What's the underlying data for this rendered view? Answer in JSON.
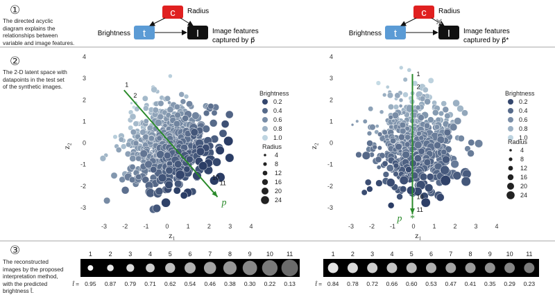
{
  "panels": [
    {
      "number": "①",
      "description": [
        "The directed acyclic",
        "diagram explains the",
        "relationships between",
        "variable and image features."
      ]
    },
    {
      "number": "②",
      "description": [
        "The 2-D latent space with",
        "datapoints in the test set",
        "of the synthetic images."
      ]
    },
    {
      "number": "③",
      "description": [
        "The reconstructed",
        "images by the proposed",
        "interpretation method,",
        "with the predicted",
        "brightness  t̂."
      ]
    }
  ],
  "dag": {
    "left": {
      "c": "c",
      "t": "t",
      "I": "I",
      "radius": "Radius",
      "brightness": "Brightness",
      "features_line1": "Image features",
      "features_line2": "captured by p⃗"
    },
    "right": {
      "c": "c",
      "t": "t",
      "I": "I",
      "radius": "Radius",
      "brightness": "Brightness",
      "features_line1": "Image features",
      "features_line2": "captured by p⃗*",
      "blocked_mark": "✕"
    },
    "colors": {
      "c_node": "#e02020",
      "t_node": "#5b9bd5",
      "I_node": "#111111"
    }
  },
  "chart_data": [
    {
      "type": "scatter",
      "xlabel": "z₁",
      "ylabel": "z₂",
      "xlim": [
        -3.4,
        4.4
      ],
      "ylim": [
        -3.5,
        4.4
      ],
      "xticks": [
        "-3",
        "-2",
        "-1",
        "0",
        "1",
        "2",
        "3",
        "4"
      ],
      "yticks": [
        "-3",
        "-2",
        "-1",
        "0",
        "1",
        "2",
        "3",
        "4"
      ],
      "color_legend_title": "Brightness",
      "color_legend": [
        "0.2",
        "0.4",
        "0.6",
        "0.8",
        "1.0"
      ],
      "size_legend_title": "Radius",
      "size_legend": [
        "4",
        "8",
        "12",
        "16",
        "20",
        "24"
      ],
      "legend_position": "right",
      "grid": false,
      "direction_vector": {
        "label": "p⃗",
        "color": "#2a8a2a",
        "from": [
          -2.05,
          2.45
        ],
        "to": [
          2.4,
          -2.5
        ]
      },
      "vector_ticks": [
        {
          "label": "1",
          "x": -2.0,
          "y": 2.6
        },
        {
          "label": "2",
          "x": -1.6,
          "y": 2.1
        },
        {
          "label": "10",
          "x": 2.15,
          "y": -1.7
        },
        {
          "label": "11",
          "x": 2.5,
          "y": -1.95
        }
      ]
    },
    {
      "type": "scatter",
      "xlabel": "z₁",
      "ylabel": "z₂",
      "xlim": [
        -3.4,
        4.5
      ],
      "ylim": [
        -3.5,
        4.2
      ],
      "xticks": [
        "-3",
        "-2",
        "-1",
        "0",
        "1",
        "2",
        "3",
        "4"
      ],
      "yticks": [
        "-3",
        "-2",
        "-1",
        "0",
        "1",
        "2",
        "3",
        "4"
      ],
      "color_legend_title": "Brightness",
      "color_legend": [
        "0.2",
        "0.4",
        "0.6",
        "0.8",
        "1.0"
      ],
      "size_legend_title": "Radius",
      "size_legend": [
        "4",
        "8",
        "12",
        "16",
        "20",
        "24"
      ],
      "legend_position": "right",
      "grid": false,
      "direction_vector": {
        "label": "p⃗*",
        "color": "#2a8a2a",
        "from": [
          -0.05,
          3.2
        ],
        "to": [
          -0.05,
          -3.3
        ]
      },
      "vector_ticks": [
        {
          "label": "1",
          "x": 0.15,
          "y": 3.1
        },
        {
          "label": "2",
          "x": 0.15,
          "y": 2.5
        },
        {
          "label": "10",
          "x": 0.15,
          "y": -2.6
        },
        {
          "label": "11",
          "x": 0.15,
          "y": -3.2
        }
      ]
    }
  ],
  "reconstructions": [
    {
      "indices": [
        "1",
        "2",
        "3",
        "4",
        "5",
        "6",
        "7",
        "8",
        "9",
        "10",
        "11"
      ],
      "t_hat_label": "t̂ =",
      "t_hat": [
        "0.95",
        "0.87",
        "0.79",
        "0.71",
        "0.62",
        "0.54",
        "0.46",
        "0.38",
        "0.30",
        "0.22",
        "0.13"
      ],
      "radius_trend": "increasing"
    },
    {
      "indices": [
        "1",
        "2",
        "3",
        "4",
        "5",
        "6",
        "7",
        "8",
        "9",
        "10",
        "11"
      ],
      "t_hat_label": "t̂ =",
      "t_hat": [
        "0.84",
        "0.78",
        "0.72",
        "0.66",
        "0.60",
        "0.53",
        "0.47",
        "0.41",
        "0.35",
        "0.29",
        "0.23"
      ],
      "radius_trend": "constant"
    }
  ]
}
